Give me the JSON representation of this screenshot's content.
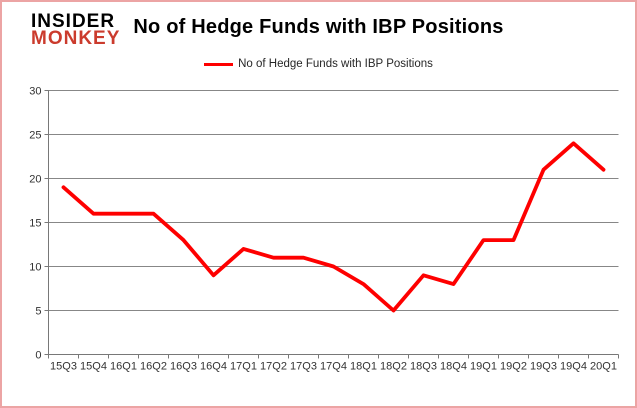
{
  "logo": {
    "line1": "INSIDER",
    "line2": "MONKEY"
  },
  "title": "No of Hedge Funds with IBP Positions",
  "legend": {
    "label": "No of Hedge Funds with IBP Positions"
  },
  "colors": {
    "line": "#fe0000",
    "logo_red": "#cb3b2d",
    "grid": "#878787",
    "axis": "#787878",
    "tick_label": "#333333",
    "page_border": "#eca4a4"
  },
  "chart_data": {
    "type": "line",
    "title": "No of Hedge Funds with IBP Positions",
    "categories": [
      "15Q3",
      "15Q4",
      "16Q1",
      "16Q2",
      "16Q3",
      "16Q4",
      "17Q1",
      "17Q2",
      "17Q3",
      "17Q4",
      "18Q1",
      "18Q2",
      "18Q3",
      "18Q4",
      "19Q1",
      "19Q2",
      "19Q3",
      "19Q4",
      "20Q1"
    ],
    "series": [
      {
        "name": "No of Hedge Funds with IBP Positions",
        "color": "#fe0000",
        "values": [
          19,
          16,
          16,
          16,
          13,
          9,
          12,
          11,
          11,
          10,
          8,
          5,
          9,
          8,
          13,
          13,
          21,
          24,
          21
        ]
      }
    ],
    "xlabel": "",
    "ylabel": "",
    "ylim": [
      0,
      30
    ],
    "yticks": [
      0,
      5,
      10,
      15,
      20,
      25,
      30
    ],
    "grid": "horizontal",
    "legend_position": "top-center"
  }
}
